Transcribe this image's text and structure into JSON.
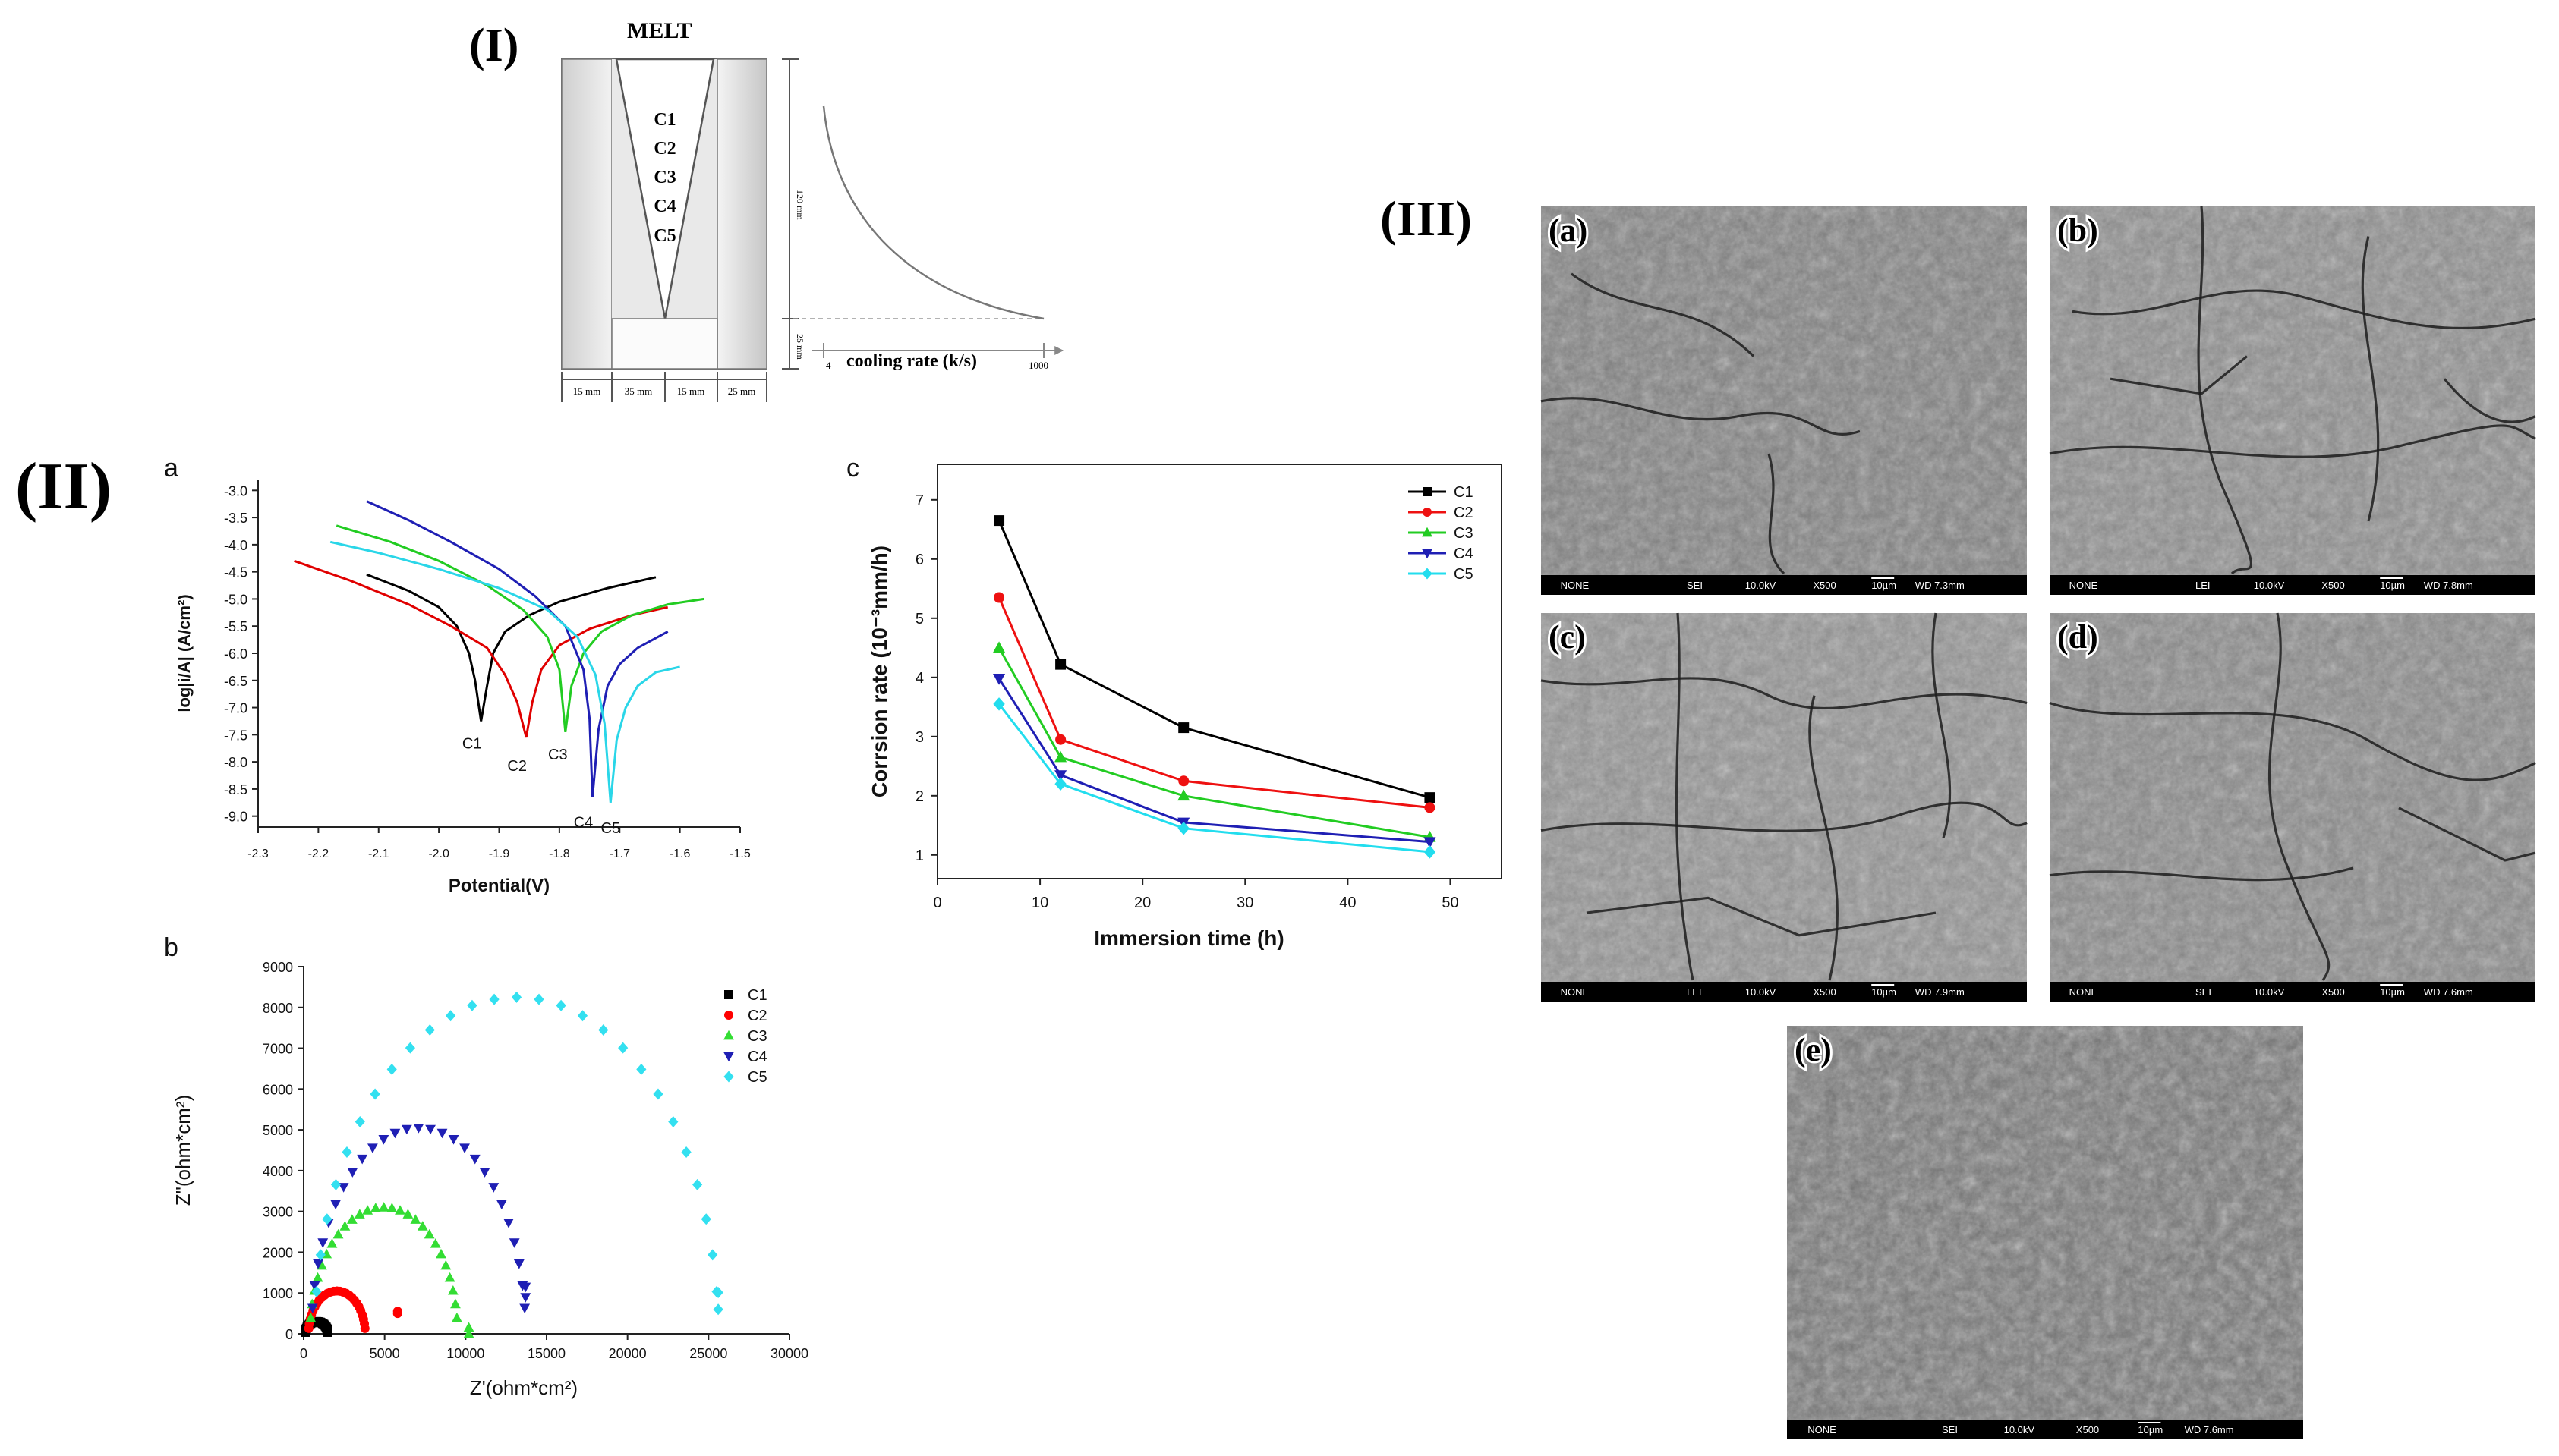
{
  "section_labels": {
    "I": "(I)",
    "II": "(II)",
    "III": "(III)"
  },
  "mold": {
    "melt_label": "MELT",
    "positions": [
      "C1",
      "C2",
      "C3",
      "C4",
      "C5"
    ],
    "height_label": "120 mm",
    "base_height_label": "25 mm",
    "widths": [
      "15 mm",
      "35 mm",
      "15 mm",
      "25 mm"
    ],
    "cooling_axis_label": "cooling rate (k/s)",
    "cooling_min": "4",
    "cooling_max": "1000"
  },
  "chart_data": [
    {
      "panel": "a",
      "type": "line",
      "xlabel": "Potential(V)",
      "ylabel": "log|i/A| (A/cm²)",
      "xlim": [
        -2.3,
        -1.5
      ],
      "ylim": [
        -9.2,
        -2.8
      ],
      "xticks": [
        "-2.3",
        "-2.2",
        "-2.1",
        "-2.0",
        "-1.9",
        "-1.8",
        "-1.7",
        "-1.6",
        "-1.5"
      ],
      "yticks": [
        "-3.0",
        "-3.5",
        "-4.0",
        "-4.5",
        "-5.0",
        "-5.5",
        "-6.0",
        "-6.5",
        "-7.0",
        "-7.5",
        "-8.0",
        "-8.5",
        "-9.0"
      ],
      "series": [
        {
          "name": "C1",
          "color": "#000000",
          "corrosion_potential": -1.93,
          "min_log_i": -7.25,
          "points": [
            [
              -2.12,
              -4.55
            ],
            [
              -2.05,
              -4.85
            ],
            [
              -2.0,
              -5.15
            ],
            [
              -1.97,
              -5.5
            ],
            [
              -1.95,
              -6.0
            ],
            [
              -1.94,
              -6.5
            ],
            [
              -1.93,
              -7.25
            ],
            [
              -1.92,
              -6.6
            ],
            [
              -1.91,
              -6.0
            ],
            [
              -1.89,
              -5.6
            ],
            [
              -1.85,
              -5.3
            ],
            [
              -1.8,
              -5.05
            ],
            [
              -1.72,
              -4.8
            ],
            [
              -1.64,
              -4.6
            ]
          ]
        },
        {
          "name": "C2",
          "color": "#e00000",
          "corrosion_potential": -1.855,
          "min_log_i": -7.55,
          "points": [
            [
              -2.24,
              -4.3
            ],
            [
              -2.15,
              -4.65
            ],
            [
              -2.05,
              -5.1
            ],
            [
              -1.98,
              -5.5
            ],
            [
              -1.92,
              -5.9
            ],
            [
              -1.89,
              -6.4
            ],
            [
              -1.87,
              -6.9
            ],
            [
              -1.855,
              -7.55
            ],
            [
              -1.845,
              -6.9
            ],
            [
              -1.83,
              -6.3
            ],
            [
              -1.8,
              -5.85
            ],
            [
              -1.75,
              -5.55
            ],
            [
              -1.68,
              -5.3
            ],
            [
              -1.62,
              -5.15
            ]
          ]
        },
        {
          "name": "C3",
          "color": "#22cc22",
          "corrosion_potential": -1.79,
          "min_log_i": -7.45,
          "points": [
            [
              -2.17,
              -3.65
            ],
            [
              -2.08,
              -3.95
            ],
            [
              -2.0,
              -4.3
            ],
            [
              -1.92,
              -4.75
            ],
            [
              -1.86,
              -5.2
            ],
            [
              -1.82,
              -5.7
            ],
            [
              -1.8,
              -6.3
            ],
            [
              -1.79,
              -7.45
            ],
            [
              -1.78,
              -6.6
            ],
            [
              -1.76,
              -6.0
            ],
            [
              -1.73,
              -5.6
            ],
            [
              -1.68,
              -5.3
            ],
            [
              -1.62,
              -5.1
            ],
            [
              -1.56,
              -5.0
            ]
          ]
        },
        {
          "name": "C4",
          "color": "#1f1fb4",
          "corrosion_potential": -1.745,
          "min_log_i": -8.65,
          "points": [
            [
              -2.12,
              -3.2
            ],
            [
              -2.05,
              -3.55
            ],
            [
              -1.98,
              -3.95
            ],
            [
              -1.9,
              -4.45
            ],
            [
              -1.84,
              -4.95
            ],
            [
              -1.79,
              -5.5
            ],
            [
              -1.76,
              -6.3
            ],
            [
              -1.75,
              -7.2
            ],
            [
              -1.745,
              -8.65
            ],
            [
              -1.735,
              -7.4
            ],
            [
              -1.72,
              -6.6
            ],
            [
              -1.7,
              -6.2
            ],
            [
              -1.67,
              -5.9
            ],
            [
              -1.62,
              -5.6
            ]
          ]
        },
        {
          "name": "C5",
          "color": "#2ad6e8",
          "corrosion_potential": -1.715,
          "min_log_i": -8.75,
          "points": [
            [
              -2.18,
              -3.95
            ],
            [
              -2.1,
              -4.15
            ],
            [
              -2.0,
              -4.45
            ],
            [
              -1.9,
              -4.8
            ],
            [
              -1.82,
              -5.2
            ],
            [
              -1.77,
              -5.7
            ],
            [
              -1.74,
              -6.4
            ],
            [
              -1.725,
              -7.3
            ],
            [
              -1.715,
              -8.75
            ],
            [
              -1.705,
              -7.6
            ],
            [
              -1.69,
              -7.0
            ],
            [
              -1.67,
              -6.6
            ],
            [
              -1.64,
              -6.35
            ],
            [
              -1.6,
              -6.25
            ]
          ]
        }
      ]
    },
    {
      "panel": "b",
      "type": "scatter",
      "xlabel": "Z'(ohm*cm²)",
      "ylabel": "Z\"(ohm*cm²)",
      "xlim": [
        0,
        30000
      ],
      "ylim": [
        0,
        9000
      ],
      "xticks": [
        "0",
        "5000",
        "10000",
        "15000",
        "20000",
        "25000",
        "30000"
      ],
      "yticks": [
        "0",
        "1000",
        "2000",
        "3000",
        "4000",
        "5000",
        "6000",
        "7000",
        "8000",
        "9000"
      ],
      "series": [
        {
          "name": "C1",
          "color": "#000000",
          "marker": "square",
          "arc": {
            "start": 100,
            "end": 1500,
            "peak": 300,
            "tail": 0
          }
        },
        {
          "name": "C2",
          "color": "#ff0000",
          "marker": "circle",
          "arc": {
            "start": 300,
            "end": 3800,
            "peak": 1050,
            "tail_x": 5800,
            "tail_y": 500
          }
        },
        {
          "name": "C3",
          "color": "#33dd33",
          "marker": "triangle-up",
          "arc": {
            "start": 400,
            "end": 9500,
            "peak": 3100,
            "tail_x": 10200,
            "tail_y": 0
          }
        },
        {
          "name": "C4",
          "color": "#1f1fb4",
          "marker": "triangle-down",
          "arc": {
            "start": 500,
            "end": 13700,
            "peak": 5050,
            "tail_x": 13700,
            "tail_y": 900
          }
        },
        {
          "name": "C5",
          "color": "#33e0f0",
          "marker": "diamond",
          "arc": {
            "start": 700,
            "end": 25600,
            "peak": 8250,
            "tail_x": 25600,
            "tail_y": 600
          }
        }
      ]
    },
    {
      "panel": "c",
      "type": "line",
      "xlabel": "Immersion time (h)",
      "ylabel": "Corrsion rate (10⁻³mm/h)",
      "xlim": [
        0,
        55
      ],
      "ylim": [
        0.6,
        7.6
      ],
      "xticks": [
        "0",
        "10",
        "20",
        "30",
        "40",
        "50"
      ],
      "yticks": [
        "1",
        "2",
        "3",
        "4",
        "5",
        "6",
        "7"
      ],
      "x": [
        6,
        12,
        24,
        48
      ],
      "series": [
        {
          "name": "C1",
          "color": "#000000",
          "marker": "square",
          "values": [
            6.65,
            4.22,
            3.15,
            1.97
          ]
        },
        {
          "name": "C2",
          "color": "#ee1111",
          "marker": "circle",
          "values": [
            5.35,
            2.95,
            2.25,
            1.8
          ]
        },
        {
          "name": "C3",
          "color": "#22cc22",
          "marker": "triangle-up",
          "values": [
            4.5,
            2.65,
            2.0,
            1.3
          ]
        },
        {
          "name": "C4",
          "color": "#1f1fb4",
          "marker": "triangle-down",
          "values": [
            3.98,
            2.35,
            1.55,
            1.22
          ]
        },
        {
          "name": "C5",
          "color": "#22ddee",
          "marker": "diamond",
          "values": [
            3.55,
            2.2,
            1.45,
            1.05
          ]
        }
      ]
    }
  ],
  "sem_images": [
    {
      "label": "(a)",
      "bar": [
        "NONE",
        "SEI",
        "10.0kV",
        "X500",
        "10µm",
        "WD 7.3mm"
      ],
      "texture": "rough"
    },
    {
      "label": "(b)",
      "bar": [
        "NONE",
        "LEI",
        "10.0kV",
        "X500",
        "10µm",
        "WD 7.8mm"
      ],
      "texture": "cracked"
    },
    {
      "label": "(c)",
      "bar": [
        "NONE",
        "LEI",
        "10.0kV",
        "X500",
        "10µm",
        "WD 7.9mm"
      ],
      "texture": "cracked-large"
    },
    {
      "label": "(d)",
      "bar": [
        "NONE",
        "SEI",
        "10.0kV",
        "X500",
        "10µm",
        "WD 7.6mm"
      ],
      "texture": "mixed"
    },
    {
      "label": "(e)",
      "bar": [
        "NONE",
        "SEI",
        "10.0kV",
        "X500",
        "10µm",
        "WD 7.6mm"
      ],
      "texture": "smooth"
    }
  ]
}
